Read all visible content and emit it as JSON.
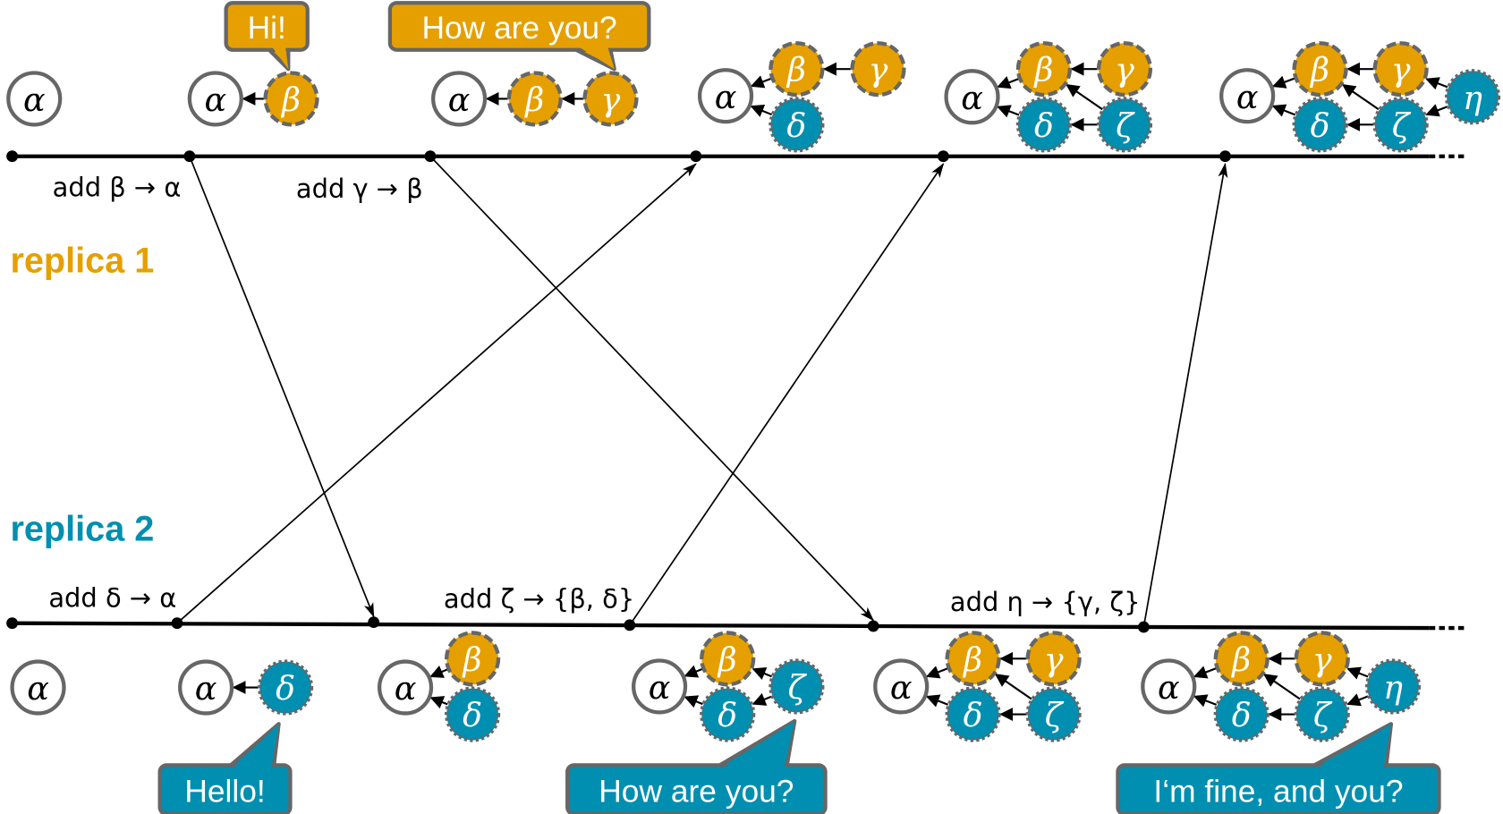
{
  "colors": {
    "replica1": "#E5A000",
    "replica2": "#008FB0",
    "outline": "#666666",
    "line": "#000000"
  },
  "replicas": [
    {
      "label": "replica 1",
      "color_key": "replica1",
      "operations": [
        "add β → α",
        "add γ → β"
      ],
      "bubbles": [
        "Hi!",
        "How are you?"
      ],
      "states": [
        {
          "nodes": [
            {
              "id": "a",
              "label": "α",
              "owner": "root"
            }
          ],
          "edges": []
        },
        {
          "nodes": [
            {
              "id": "a",
              "label": "α",
              "owner": "root"
            },
            {
              "id": "b",
              "label": "β",
              "owner": "replica1"
            }
          ],
          "edges": [
            [
              "b",
              "a"
            ]
          ]
        },
        {
          "nodes": [
            {
              "id": "a",
              "label": "α",
              "owner": "root"
            },
            {
              "id": "b",
              "label": "β",
              "owner": "replica1"
            },
            {
              "id": "g",
              "label": "γ",
              "owner": "replica1"
            }
          ],
          "edges": [
            [
              "b",
              "a"
            ],
            [
              "g",
              "b"
            ]
          ]
        },
        {
          "nodes": [
            {
              "id": "a",
              "label": "α",
              "owner": "root"
            },
            {
              "id": "b",
              "label": "β",
              "owner": "replica1"
            },
            {
              "id": "g",
              "label": "γ",
              "owner": "replica1"
            },
            {
              "id": "d",
              "label": "δ",
              "owner": "replica2"
            }
          ],
          "edges": [
            [
              "b",
              "a"
            ],
            [
              "d",
              "a"
            ],
            [
              "g",
              "b"
            ]
          ]
        },
        {
          "nodes": [
            {
              "id": "a",
              "label": "α",
              "owner": "root"
            },
            {
              "id": "b",
              "label": "β",
              "owner": "replica1"
            },
            {
              "id": "g",
              "label": "γ",
              "owner": "replica1"
            },
            {
              "id": "d",
              "label": "δ",
              "owner": "replica2"
            },
            {
              "id": "z",
              "label": "ζ",
              "owner": "replica2"
            }
          ],
          "edges": [
            [
              "b",
              "a"
            ],
            [
              "d",
              "a"
            ],
            [
              "g",
              "b"
            ],
            [
              "z",
              "b"
            ],
            [
              "z",
              "d"
            ]
          ]
        },
        {
          "nodes": [
            {
              "id": "a",
              "label": "α",
              "owner": "root"
            },
            {
              "id": "b",
              "label": "β",
              "owner": "replica1"
            },
            {
              "id": "g",
              "label": "γ",
              "owner": "replica1"
            },
            {
              "id": "d",
              "label": "δ",
              "owner": "replica2"
            },
            {
              "id": "z",
              "label": "ζ",
              "owner": "replica2"
            },
            {
              "id": "h",
              "label": "η",
              "owner": "replica2"
            }
          ],
          "edges": [
            [
              "b",
              "a"
            ],
            [
              "d",
              "a"
            ],
            [
              "g",
              "b"
            ],
            [
              "z",
              "b"
            ],
            [
              "z",
              "d"
            ],
            [
              "h",
              "g"
            ],
            [
              "h",
              "z"
            ]
          ]
        }
      ]
    },
    {
      "label": "replica 2",
      "color_key": "replica2",
      "operations": [
        "add δ → α",
        "add ζ → {β, δ}",
        "add η → {γ, ζ}"
      ],
      "bubbles": [
        "Hello!",
        "How are you?",
        "I‘m fine, and you?"
      ],
      "states": [
        {
          "nodes": [
            {
              "id": "a",
              "label": "α",
              "owner": "root"
            }
          ],
          "edges": []
        },
        {
          "nodes": [
            {
              "id": "a",
              "label": "α",
              "owner": "root"
            },
            {
              "id": "d",
              "label": "δ",
              "owner": "replica2"
            }
          ],
          "edges": [
            [
              "d",
              "a"
            ]
          ]
        },
        {
          "nodes": [
            {
              "id": "a",
              "label": "α",
              "owner": "root"
            },
            {
              "id": "b",
              "label": "β",
              "owner": "replica1"
            },
            {
              "id": "d",
              "label": "δ",
              "owner": "replica2"
            }
          ],
          "edges": [
            [
              "b",
              "a"
            ],
            [
              "d",
              "a"
            ]
          ]
        },
        {
          "nodes": [
            {
              "id": "a",
              "label": "α",
              "owner": "root"
            },
            {
              "id": "b",
              "label": "β",
              "owner": "replica1"
            },
            {
              "id": "d",
              "label": "δ",
              "owner": "replica2"
            },
            {
              "id": "z",
              "label": "ζ",
              "owner": "replica2"
            }
          ],
          "edges": [
            [
              "b",
              "a"
            ],
            [
              "d",
              "a"
            ],
            [
              "z",
              "b"
            ],
            [
              "z",
              "d"
            ]
          ]
        },
        {
          "nodes": [
            {
              "id": "a",
              "label": "α",
              "owner": "root"
            },
            {
              "id": "b",
              "label": "β",
              "owner": "replica1"
            },
            {
              "id": "g",
              "label": "γ",
              "owner": "replica1"
            },
            {
              "id": "d",
              "label": "δ",
              "owner": "replica2"
            },
            {
              "id": "z",
              "label": "ζ",
              "owner": "replica2"
            }
          ],
          "edges": [
            [
              "b",
              "a"
            ],
            [
              "d",
              "a"
            ],
            [
              "g",
              "b"
            ],
            [
              "z",
              "b"
            ],
            [
              "z",
              "d"
            ]
          ]
        },
        {
          "nodes": [
            {
              "id": "a",
              "label": "α",
              "owner": "root"
            },
            {
              "id": "b",
              "label": "β",
              "owner": "replica1"
            },
            {
              "id": "g",
              "label": "γ",
              "owner": "replica1"
            },
            {
              "id": "d",
              "label": "δ",
              "owner": "replica2"
            },
            {
              "id": "z",
              "label": "ζ",
              "owner": "replica2"
            },
            {
              "id": "h",
              "label": "η",
              "owner": "replica2"
            }
          ],
          "edges": [
            [
              "b",
              "a"
            ],
            [
              "d",
              "a"
            ],
            [
              "g",
              "b"
            ],
            [
              "z",
              "b"
            ],
            [
              "z",
              "d"
            ],
            [
              "h",
              "g"
            ],
            [
              "h",
              "z"
            ]
          ]
        }
      ]
    }
  ],
  "messages": [
    {
      "from": "replica 1",
      "op": "add β → α",
      "to": "replica 2"
    },
    {
      "from": "replica 1",
      "op": "add γ → β",
      "to": "replica 2"
    },
    {
      "from": "replica 2",
      "op": "add δ → α",
      "to": "replica 1"
    },
    {
      "from": "replica 2",
      "op": "add ζ → {β, δ}",
      "to": "replica 1"
    },
    {
      "from": "replica 2",
      "op": "add η → {γ, ζ}",
      "to": "replica 1"
    }
  ]
}
